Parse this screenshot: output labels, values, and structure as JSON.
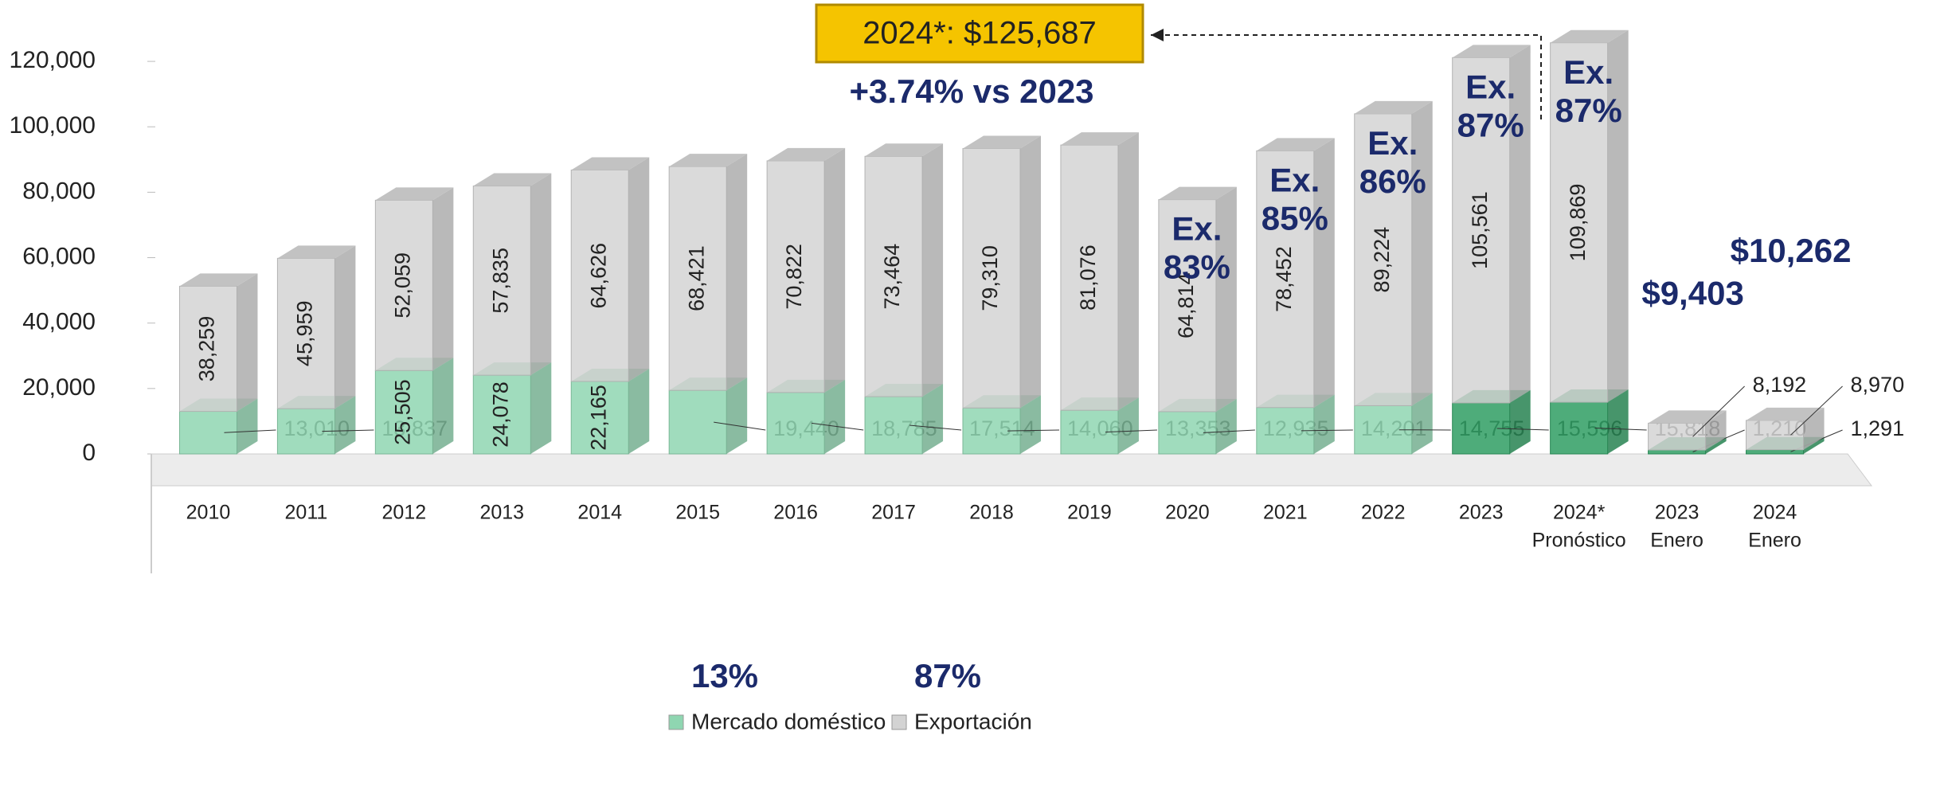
{
  "chart_data": {
    "type": "bar",
    "stacked": true,
    "categories": [
      "2010",
      "2011",
      "2012",
      "2013",
      "2014",
      "2015",
      "2016",
      "2017",
      "2018",
      "2019",
      "2020",
      "2021",
      "2022",
      "2023",
      "2024*",
      "2023",
      "2024"
    ],
    "category_sublabels": [
      null,
      null,
      null,
      null,
      null,
      null,
      null,
      null,
      null,
      null,
      null,
      null,
      null,
      null,
      "Pronóstico",
      "Enero",
      "Enero"
    ],
    "series": [
      {
        "name": "Mercado doméstico",
        "color": "#8fd6b1",
        "share": 13,
        "share_label": "13%",
        "colors": [
          "#8fd6b1",
          "#8fd6b1",
          "#8fd6b1",
          "#8fd6b1",
          "#8fd6b1",
          "#8fd6b1",
          "#8fd6b1",
          "#8fd6b1",
          "#8fd6b1",
          "#8fd6b1",
          "#8fd6b1",
          "#8fd6b1",
          "#8fd6b1",
          "#2f9e63",
          "#2f9e63",
          "#2f9e63",
          "#2f9e63"
        ],
        "values": [
          13010,
          13837,
          25505,
          24078,
          22165,
          19440,
          18785,
          17514,
          14060,
          13353,
          12935,
          14201,
          14755,
          15596,
          15818,
          1210,
          1291
        ],
        "value_labels": [
          "13,010",
          "13,837",
          "25,505",
          "24,078",
          "22,165",
          "19,440",
          "18,785",
          "17,514",
          "14,060",
          "13,353",
          "12,935",
          "14,201",
          "14,755",
          "15,596",
          "15,818",
          "1,210",
          "1,291"
        ]
      },
      {
        "name": "Exportación",
        "color": "#d3d3d3",
        "share": 87,
        "share_label": "87%",
        "values": [
          38259,
          45959,
          52059,
          57835,
          64626,
          68421,
          70822,
          73464,
          79310,
          81076,
          64814,
          78452,
          89224,
          105561,
          109869,
          8192,
          8970
        ],
        "value_labels": [
          "38,259",
          "45,959",
          "52,059",
          "57,835",
          "64,626",
          "68,421",
          "70,822",
          "73,464",
          "79,310",
          "81,076",
          "64,814",
          "78,452",
          "89,224",
          "105,561",
          "109,869",
          "8,192",
          "8,970"
        ]
      }
    ],
    "export_share_prefix": "Ex.",
    "export_shares": [
      null,
      null,
      null,
      null,
      null,
      null,
      null,
      null,
      null,
      null,
      83,
      85,
      86,
      87,
      87,
      null,
      null
    ],
    "export_share_labels": [
      null,
      null,
      null,
      null,
      null,
      null,
      null,
      null,
      null,
      null,
      "83%",
      "85%",
      "86%",
      "87%",
      "87%",
      null,
      null
    ],
    "total_labels": [
      null,
      null,
      null,
      null,
      null,
      null,
      null,
      null,
      null,
      null,
      null,
      null,
      null,
      null,
      null,
      "$9,403",
      "$10,262"
    ],
    "highlight": "2024*: $125,687",
    "highlight_note": "+3.74% vs 2023",
    "ylim": [
      0,
      130000
    ],
    "yticks": [
      0,
      {
        "value": 20000,
        "label": "20,000"
      },
      {
        "value": 40000,
        "label": "40,000"
      },
      {
        "value": 60000,
        "label": "60,000"
      },
      {
        "value": 80000,
        "label": "80,000"
      },
      {
        "value": 100000,
        "label": "100,000"
      },
      {
        "value": 120000,
        "label": "120,000"
      }
    ]
  }
}
